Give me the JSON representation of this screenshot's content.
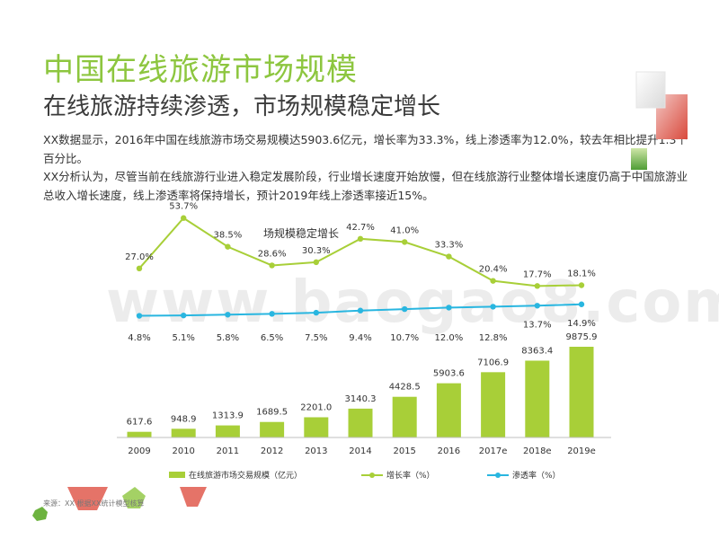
{
  "header": {
    "title": "中国在线旅游市场规模",
    "subtitle": "在线旅游持续渗透，市场规模稳定增长"
  },
  "body": {
    "paragraph1": "XX数据显示，2016年中国在线旅游市场交易规模达5903.6亿元，增长率为33.3%，线上渗透率为12.0%，较去年相比提升1.3个百分比。",
    "paragraph2": "XX分析认为，尽管当前在线旅游行业进入稳定发展阶段，行业增长速度开始放慢，但在线旅游行业整体增长速度仍高于中国旅游业总收入增长速度，线上渗透率将保持增长，预计2019年线上渗透率接近15%。"
  },
  "footer": {
    "source": "来源：XX 根据XX统计模型核算"
  },
  "watermark": "www.baogao8.com",
  "colors": {
    "green": "#a8cf38",
    "title_green": "#8dc63f",
    "blue": "#29b6e0",
    "red": "#d94a3d"
  },
  "chart_data": {
    "type": "bar",
    "title": "场规模稳定增长",
    "categories": [
      "2009",
      "2010",
      "2011",
      "2012",
      "2013",
      "2014",
      "2015",
      "2016",
      "2017e",
      "2018e",
      "2019e"
    ],
    "series": [
      {
        "name": "在线旅游市场交易规模（亿元）",
        "type": "bar",
        "values": [
          617.6,
          948.9,
          1313.9,
          1689.5,
          2201.0,
          3140.3,
          4428.5,
          5903.6,
          7106.9,
          8363.4,
          9875.9
        ],
        "labels": [
          "617.6",
          "948.9",
          "1313.9",
          "1689.5",
          "2201.0",
          "3140.3",
          "4428.5",
          "5903.6",
          "7106.9",
          "8363.4",
          "9875.9"
        ]
      },
      {
        "name": "增长率（%）",
        "type": "line",
        "values": [
          27.0,
          53.7,
          38.5,
          28.6,
          30.3,
          42.7,
          41.0,
          33.3,
          20.4,
          17.7,
          18.1
        ],
        "labels": [
          "27.0%",
          "53.7%",
          "38.5%",
          "28.6%",
          "30.3%",
          "42.7%",
          "41.0%",
          "33.3%",
          "20.4%",
          "17.7%",
          "18.1%"
        ]
      },
      {
        "name": "渗透率（%）",
        "type": "line",
        "values": [
          4.8,
          5.1,
          5.8,
          6.5,
          7.5,
          9.4,
          10.7,
          12.0,
          12.8,
          13.7,
          14.9
        ],
        "labels": [
          "4.8%",
          "5.1%",
          "5.8%",
          "6.5%",
          "7.5%",
          "9.4%",
          "10.7%",
          "12.0%",
          "12.8%",
          "13.7%",
          "14.9%"
        ]
      }
    ],
    "legend": "bottom",
    "grid": false
  }
}
